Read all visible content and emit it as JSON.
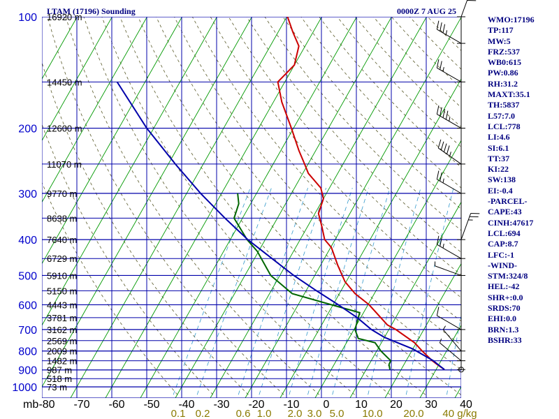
{
  "header": {
    "title": "LTAM (17196) Sounding",
    "time": "0000Z  7 AUG 25"
  },
  "indices": [
    "WMO:17196",
    "TP:117",
    "MW:5",
    "FRZ:537",
    "WB0:615",
    "PW:0.86",
    "RH:31.2",
    "MAXT:35.1",
    "TH:5837",
    "L57:7.0",
    "LCL:778",
    "LI:4.6",
    "SI:6.1",
    "TT:37",
    "KI:22",
    "SW:138",
    "EI:-0.4",
    "-PARCEL-",
    "CAPE:43",
    "CINH:47617",
    "LCL:694",
    "CAP:8.7",
    "LFC:-1",
    "-WIND-",
    "STM:324/8",
    "HEL:-42",
    "SHR+:0.0",
    "SRDS:70",
    "EHI:0.0",
    "BRN:1.3",
    "BSHR:33"
  ],
  "chart_data": {
    "type": "line",
    "title": "LTAM (17196) Sounding",
    "x_label": "",
    "y_label": "mb",
    "pressure_ticks": [
      100,
      200,
      300,
      400,
      500,
      600,
      700,
      800,
      900,
      1000
    ],
    "temperature_ticks": [
      "-80",
      "-70",
      "-60",
      "-50",
      "-40",
      "-30",
      "-20",
      "-10",
      "0",
      "10",
      "20",
      "30",
      "40"
    ],
    "mixing_ratio_ticks": [
      "0.1",
      "0.2",
      "0.6",
      "1.0",
      "2.0",
      "3.0",
      "5.0",
      "10.0",
      "20.0",
      "40 g/kg"
    ],
    "height_labels": [
      {
        "p": 100,
        "label": "16920 m"
      },
      {
        "p": 150,
        "label": "14450 m"
      },
      {
        "p": 200,
        "label": "12600 m"
      },
      {
        "p": 250,
        "label": "11070 m"
      },
      {
        "p": 300,
        "label": "9770 m"
      },
      {
        "p": 350,
        "label": "8638 m"
      },
      {
        "p": 400,
        "label": "7640 m"
      },
      {
        "p": 450,
        "label": "6729 m"
      },
      {
        "p": 500,
        "label": "5910 m"
      },
      {
        "p": 550,
        "label": "5150 m"
      },
      {
        "p": 600,
        "label": "4443 m"
      },
      {
        "p": 650,
        "label": "3781 m"
      },
      {
        "p": 700,
        "label": "3162 m"
      },
      {
        "p": 750,
        "label": "2569 m"
      },
      {
        "p": 800,
        "label": "2009 m"
      },
      {
        "p": 850,
        "label": "1482 m"
      },
      {
        "p": 900,
        "label": "987 m"
      },
      {
        "p": 950,
        "label": "518 m"
      },
      {
        "p": 1000,
        "label": "73 m"
      }
    ],
    "series": [
      {
        "name": "Temperature",
        "color": "#cc0000",
        "points": [
          [
            898,
            32.4
          ],
          [
            870,
            29.5
          ],
          [
            850,
            27.5
          ],
          [
            800,
            23.0
          ],
          [
            760,
            19.5
          ],
          [
            700,
            12.0
          ],
          [
            680,
            8.8
          ],
          [
            600,
            0.3
          ],
          [
            560,
            -5.5
          ],
          [
            520,
            -10.3
          ],
          [
            470,
            -15.0
          ],
          [
            420,
            -19.8
          ],
          [
            400,
            -23.0
          ],
          [
            370,
            -25.8
          ],
          [
            340,
            -29.0
          ],
          [
            310,
            -30.0
          ],
          [
            290,
            -32.5
          ],
          [
            265,
            -38.4
          ],
          [
            250,
            -41.0
          ],
          [
            230,
            -44.8
          ],
          [
            200,
            -50.6
          ],
          [
            170,
            -57.6
          ],
          [
            150,
            -62.0
          ],
          [
            135,
            -60.0
          ],
          [
            120,
            -61.8
          ],
          [
            110,
            -65.8
          ],
          [
            100,
            -69.8
          ]
        ]
      },
      {
        "name": "Dewpoint",
        "color": "#006600",
        "points": [
          [
            898,
            16.8
          ],
          [
            870,
            15.7
          ],
          [
            850,
            15.6
          ],
          [
            800,
            11.2
          ],
          [
            760,
            8.2
          ],
          [
            740,
            2.7
          ],
          [
            700,
            0.3
          ],
          [
            630,
            -1.1
          ],
          [
            600,
            -10.5
          ],
          [
            560,
            -23.5
          ],
          [
            500,
            -32.6
          ],
          [
            430,
            -40.4
          ],
          [
            400,
            -45.2
          ],
          [
            350,
            -52.4
          ],
          [
            320,
            -53.4
          ],
          [
            300,
            -55.4
          ]
        ]
      },
      {
        "name": "Parcel",
        "color": "#0000aa",
        "points": [
          [
            898,
            32.4
          ],
          [
            870,
            29.7
          ],
          [
            850,
            27.8
          ],
          [
            790,
            20.0
          ],
          [
            735,
            10.0
          ],
          [
            700,
            5.0
          ],
          [
            650,
            -1.0
          ],
          [
            600,
            -8.5
          ],
          [
            550,
            -17.0
          ],
          [
            500,
            -26.0
          ],
          [
            450,
            -35.0
          ],
          [
            400,
            -45.0
          ],
          [
            350,
            -55.0
          ],
          [
            300,
            -66.0
          ],
          [
            250,
            -78.0
          ],
          [
            200,
            -92.0
          ],
          [
            150,
            -108.0
          ]
        ]
      }
    ],
    "wind_barbs": [
      {
        "p": 100,
        "dir": 20,
        "kt": 40
      },
      {
        "p": 118,
        "dir": 300,
        "kt": 35
      },
      {
        "p": 150,
        "dir": 300,
        "kt": 25
      },
      {
        "p": 200,
        "dir": 300,
        "kt": 45
      },
      {
        "p": 250,
        "dir": 305,
        "kt": 45
      },
      {
        "p": 300,
        "dir": 300,
        "kt": 25
      },
      {
        "p": 400,
        "dir": 20,
        "kt": 25
      },
      {
        "p": 450,
        "dir": 300,
        "kt": 25
      },
      {
        "p": 500,
        "dir": 290,
        "kt": 5
      },
      {
        "p": 700,
        "dir": 300,
        "kt": 10
      },
      {
        "p": 800,
        "dir": 320,
        "kt": 5
      },
      {
        "p": 850,
        "dir": 310,
        "kt": 5
      },
      {
        "p": 898,
        "dir": 0,
        "kt": 0
      }
    ]
  }
}
